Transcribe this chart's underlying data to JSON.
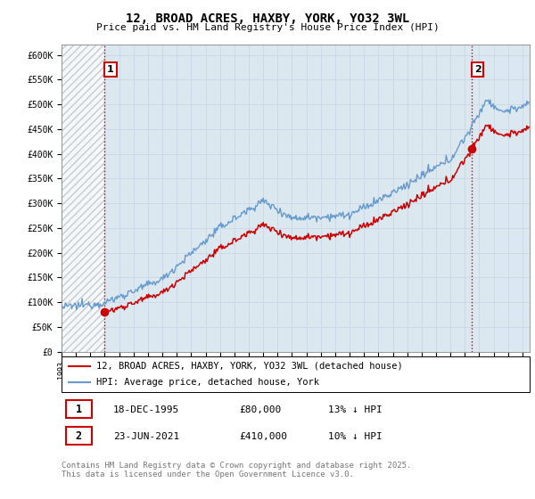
{
  "title": "12, BROAD ACRES, HAXBY, YORK, YO32 3WL",
  "subtitle": "Price paid vs. HM Land Registry's House Price Index (HPI)",
  "ylabel_ticks": [
    "£0",
    "£50K",
    "£100K",
    "£150K",
    "£200K",
    "£250K",
    "£300K",
    "£350K",
    "£400K",
    "£450K",
    "£500K",
    "£550K",
    "£600K"
  ],
  "ytick_values": [
    0,
    50000,
    100000,
    150000,
    200000,
    250000,
    300000,
    350000,
    400000,
    450000,
    500000,
    550000,
    600000
  ],
  "ylim": [
    0,
    620000
  ],
  "xlim_start": 1993.0,
  "xlim_end": 2025.5,
  "legend_line1": "12, BROAD ACRES, HAXBY, YORK, YO32 3WL (detached house)",
  "legend_line2": "HPI: Average price, detached house, York",
  "sale1_label": "1",
  "sale1_date": "18-DEC-1995",
  "sale1_price": "£80,000",
  "sale1_hpi": "13% ↓ HPI",
  "sale2_label": "2",
  "sale2_date": "23-JUN-2021",
  "sale2_price": "£410,000",
  "sale2_hpi": "10% ↓ HPI",
  "footer": "Contains HM Land Registry data © Crown copyright and database right 2025.\nThis data is licensed under the Open Government Licence v3.0.",
  "line_color_red": "#cc0000",
  "line_color_blue": "#6699cc",
  "grid_color": "#c8d8e8",
  "plot_bg_color": "#dce8f0",
  "vline_color": "#cc0000",
  "marker_color": "#cc0000",
  "title_fontsize": 10,
  "subtitle_fontsize": 8,
  "tick_fontsize": 7,
  "legend_fontsize": 7.5,
  "table_fontsize": 8,
  "footer_fontsize": 6.5,
  "sale1_year": 1995.958,
  "sale1_price_val": 80000,
  "sale2_year": 2021.458,
  "sale2_price_val": 410000
}
